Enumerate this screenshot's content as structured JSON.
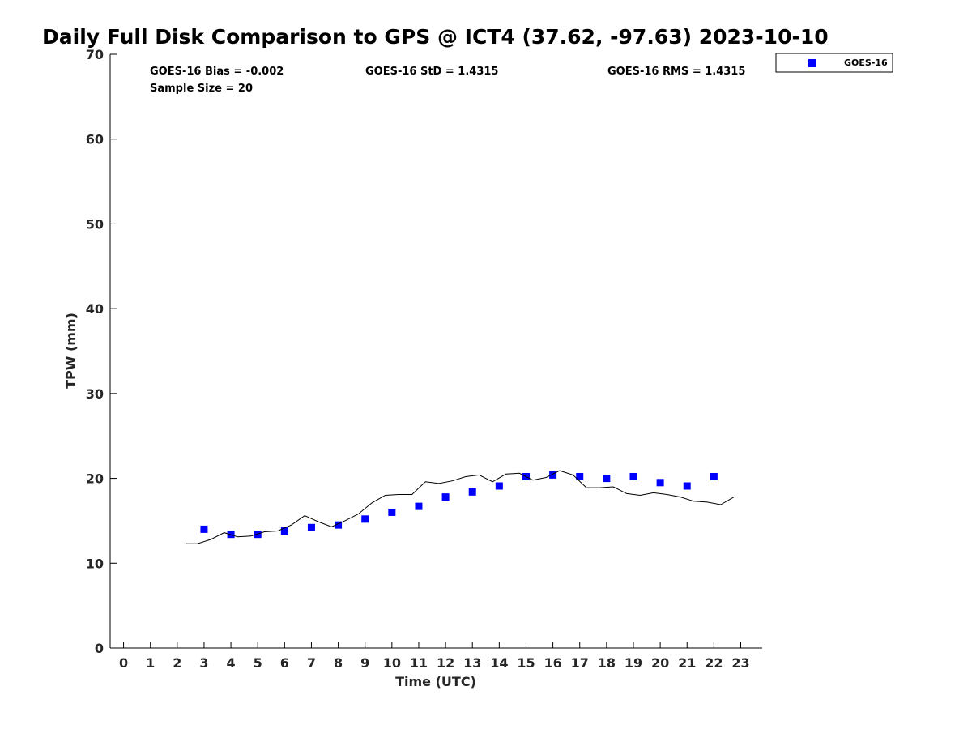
{
  "chart_data": {
    "type": "scatter",
    "title": "Daily Full Disk Comparison to GPS @ ICT4 (37.62, -97.63) 2023-10-10",
    "xlabel": "Time (UTC)",
    "ylabel": "TPW (mm)",
    "xlim": [
      -0.5,
      23.8
    ],
    "ylim": [
      0,
      70
    ],
    "xticks": [
      "0",
      "1",
      "2",
      "3",
      "4",
      "5",
      "6",
      "7",
      "8",
      "9",
      "10",
      "11",
      "12",
      "13",
      "14",
      "15",
      "16",
      "17",
      "18",
      "19",
      "20",
      "21",
      "22",
      "23"
    ],
    "yticks": [
      "0",
      "10",
      "20",
      "30",
      "40",
      "50",
      "60",
      "70"
    ],
    "grid": false,
    "legend_position": "top-right",
    "stats": {
      "bias": "GOES-16 Bias = -0.002",
      "std": "GOES-16 StD = 1.4315",
      "rms": "GOES-16 RMS = 1.4315",
      "sample": "Sample Size = 20"
    },
    "series": [
      {
        "name": "GOES-16",
        "kind": "markers",
        "color": "#0000ff",
        "x": [
          3,
          4,
          5,
          6,
          7,
          8,
          9,
          10,
          11,
          12,
          13,
          14,
          15,
          16,
          17,
          18,
          19,
          20,
          21,
          22
        ],
        "y": [
          14.0,
          13.4,
          13.4,
          13.8,
          14.2,
          14.5,
          15.2,
          16.0,
          16.7,
          17.8,
          18.4,
          19.1,
          20.2,
          20.4,
          20.2,
          20.0,
          20.2,
          19.5,
          19.1,
          20.2
        ]
      },
      {
        "kind": "line",
        "color": "#000000",
        "x": [
          2.33,
          2.75,
          3.25,
          3.75,
          4.25,
          4.75,
          5.25,
          5.75,
          6.25,
          6.75,
          7.25,
          7.75,
          8.25,
          8.75,
          9.25,
          9.75,
          10.25,
          10.75,
          11.25,
          11.75,
          12.25,
          12.75,
          13.25,
          13.75,
          14.25,
          14.75,
          15.25,
          15.75,
          16.25,
          16.75,
          17.25,
          17.75,
          18.25,
          18.75,
          19.25,
          19.75,
          20.25,
          20.75,
          21.25,
          21.75,
          22.25,
          22.75
        ],
        "y": [
          12.3,
          12.3,
          12.8,
          13.6,
          13.1,
          13.2,
          13.7,
          13.8,
          14.5,
          15.6,
          14.9,
          14.3,
          15.0,
          15.8,
          17.1,
          18.0,
          18.1,
          18.1,
          19.6,
          19.4,
          19.7,
          20.2,
          20.4,
          19.6,
          20.5,
          20.6,
          19.8,
          20.1,
          20.9,
          20.4,
          18.9,
          18.9,
          19.0,
          18.2,
          18.0,
          18.3,
          18.1,
          17.8,
          17.3,
          17.2,
          16.9,
          17.8
        ]
      }
    ]
  }
}
